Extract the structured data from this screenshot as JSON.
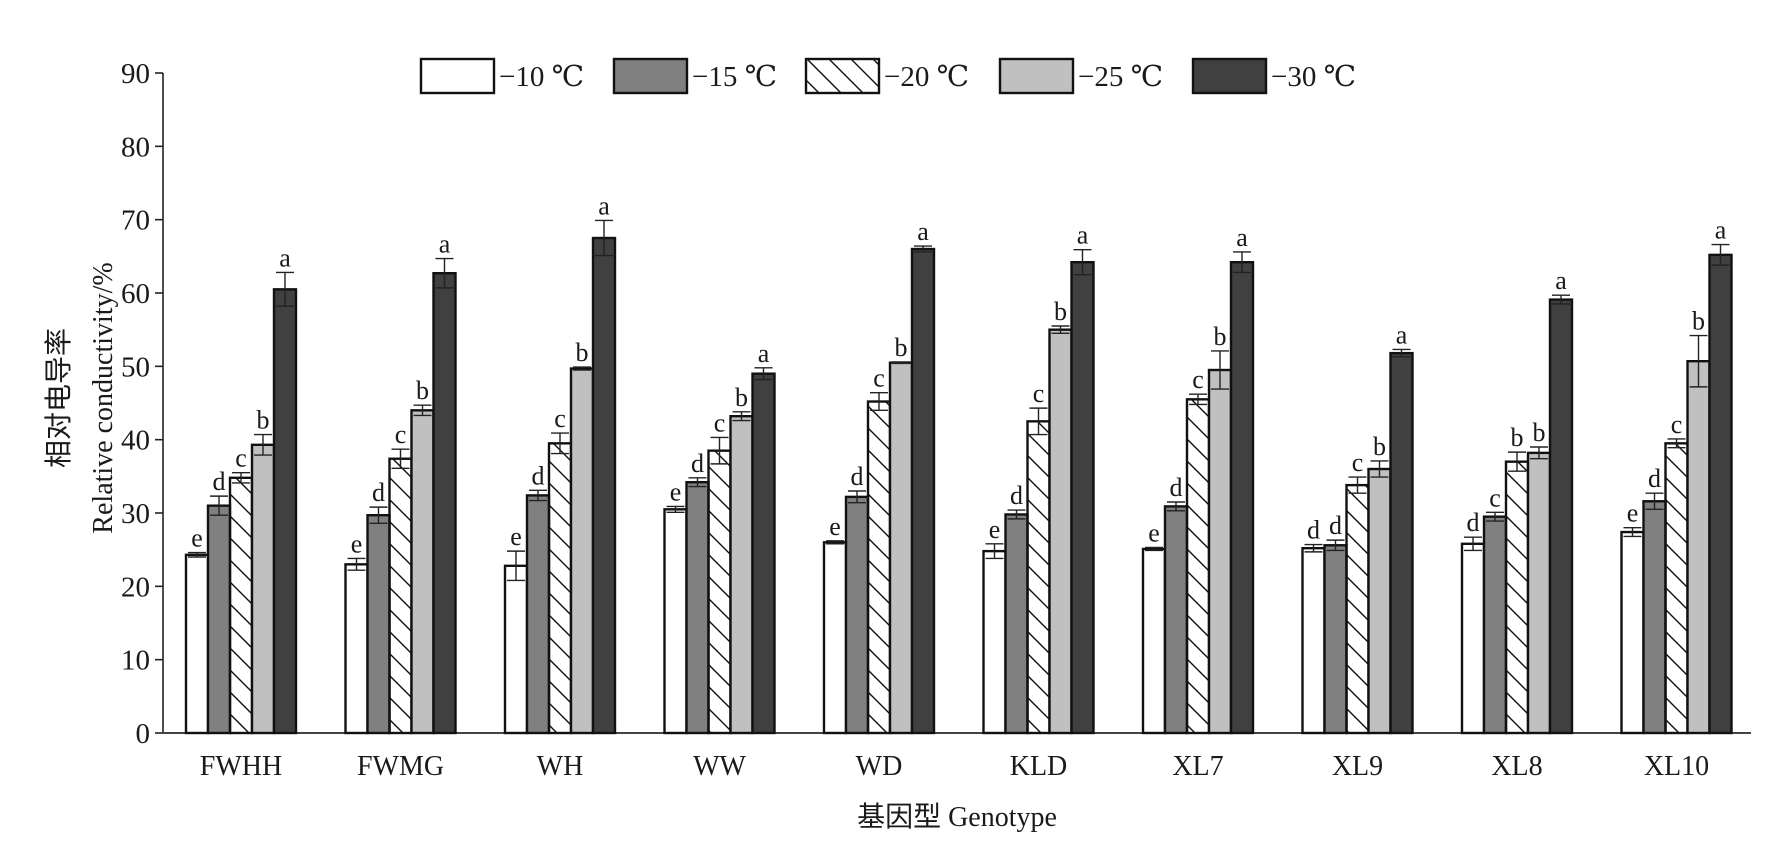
{
  "chart_data": {
    "type": "bar",
    "title": "",
    "xlabel": "基因型 Genotype",
    "ylabel_cn": "相对电导率",
    "ylabel_en": "Relative conductivity/%",
    "ylim": [
      0,
      90
    ],
    "yticks": [
      0,
      10,
      20,
      30,
      40,
      50,
      60,
      70,
      80,
      90
    ],
    "grid": false,
    "legend_position": "top-center",
    "categories": [
      "FWHH",
      "FWMG",
      "WH",
      "WW",
      "WD",
      "KLD",
      "XL7",
      "XL9",
      "XL8",
      "XL10"
    ],
    "series": [
      {
        "name": "−10 ℃",
        "fill": "#ffffff",
        "pattern": "none",
        "values": [
          24.3,
          23.0,
          22.8,
          30.5,
          26.0,
          24.8,
          25.1,
          25.2,
          25.8,
          27.4
        ],
        "errors": [
          0.3,
          0.8,
          2.0,
          0.4,
          0.2,
          1.0,
          0.2,
          0.5,
          0.9,
          0.6
        ],
        "letters": [
          "e",
          "e",
          "e",
          "e",
          "e",
          "e",
          "e",
          "d",
          "d",
          "e"
        ]
      },
      {
        "name": "−15 ℃",
        "fill": "#808080",
        "pattern": "none",
        "values": [
          31.0,
          29.7,
          32.4,
          34.2,
          32.2,
          29.8,
          30.9,
          25.6,
          29.5,
          31.6
        ],
        "errors": [
          1.3,
          1.1,
          0.7,
          0.6,
          0.8,
          0.6,
          0.6,
          0.7,
          0.6,
          1.1
        ],
        "letters": [
          "d",
          "d",
          "d",
          "d",
          "d",
          "d",
          "d",
          "d",
          "c",
          "d"
        ]
      },
      {
        "name": "−20 ℃",
        "fill": "#ffffff",
        "pattern": "hatch",
        "values": [
          34.8,
          37.4,
          39.5,
          38.5,
          45.2,
          42.5,
          45.5,
          33.8,
          37.0,
          39.5
        ],
        "errors": [
          0.7,
          1.3,
          1.4,
          1.8,
          1.2,
          1.8,
          0.7,
          1.1,
          1.3,
          0.6
        ],
        "letters": [
          "c",
          "c",
          "c",
          "c",
          "c",
          "c",
          "c",
          "c",
          "b",
          "c"
        ]
      },
      {
        "name": "−25 ℃",
        "fill": "#c0c0c0",
        "pattern": "none",
        "values": [
          39.3,
          44.0,
          49.7,
          43.2,
          50.5,
          55.0,
          49.5,
          36.0,
          38.2,
          50.7
        ],
        "errors": [
          1.4,
          0.7,
          0.2,
          0.6,
          0.1,
          0.5,
          2.6,
          1.1,
          0.8,
          3.5
        ],
        "letters": [
          "b",
          "b",
          "b",
          "b",
          "b",
          "b",
          "b",
          "b",
          "b",
          "b"
        ]
      },
      {
        "name": "−30 ℃",
        "fill": "#404040",
        "pattern": "none",
        "values": [
          60.5,
          62.7,
          67.5,
          49.0,
          66.0,
          64.2,
          64.2,
          51.8,
          59.1,
          65.2
        ],
        "errors": [
          2.3,
          2.0,
          2.4,
          0.8,
          0.4,
          1.7,
          1.4,
          0.5,
          0.6,
          1.4
        ],
        "letters": [
          "a",
          "a",
          "a",
          "a",
          "a",
          "a",
          "a",
          "a",
          "a",
          "a"
        ]
      }
    ]
  }
}
